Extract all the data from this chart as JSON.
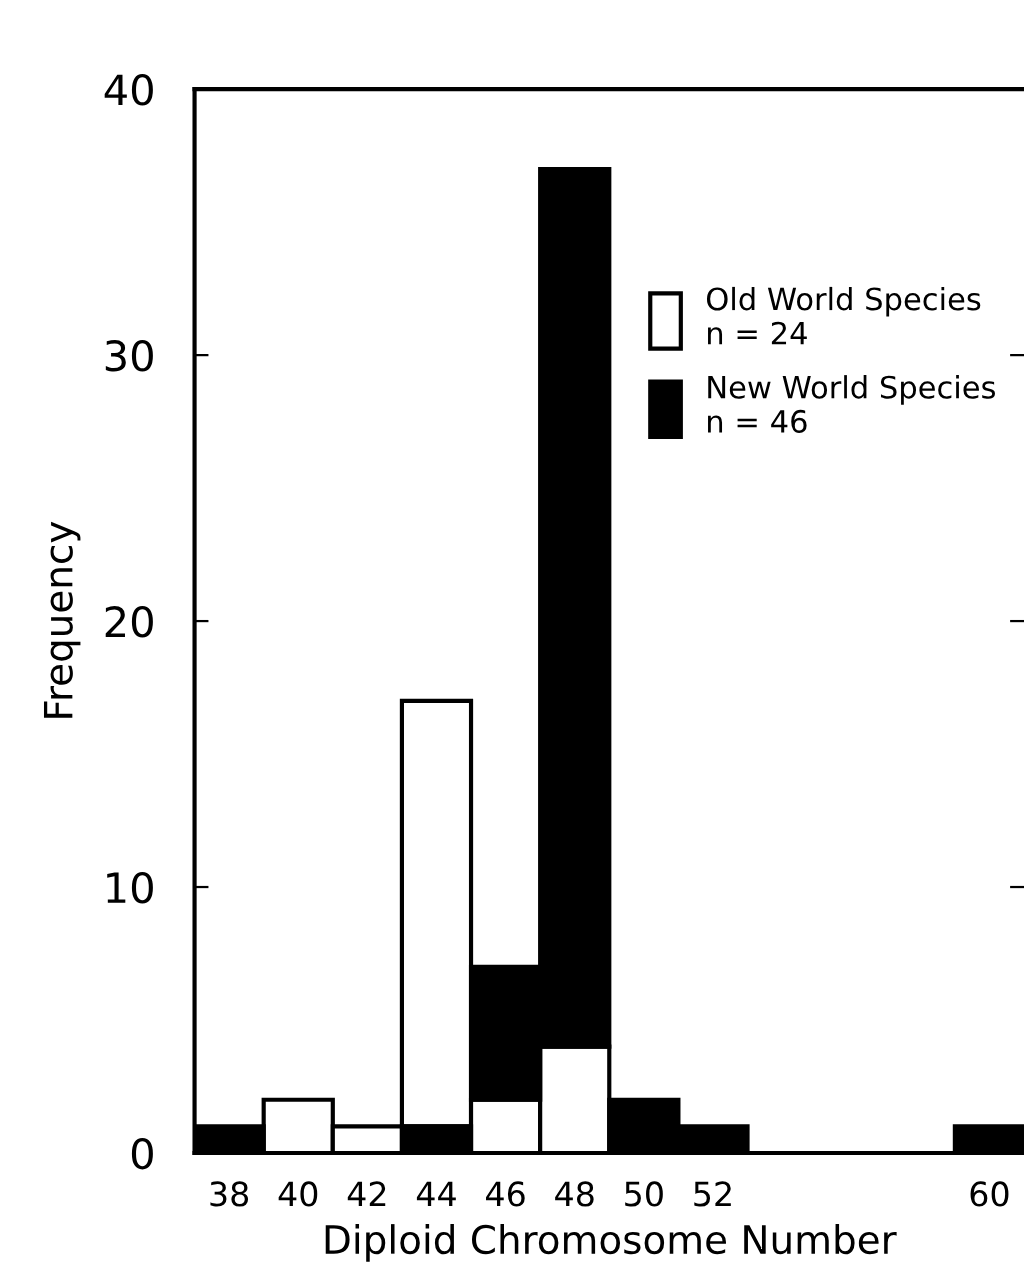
{
  "chart_data": {
    "type": "bar",
    "xlabel": "Diploid Chromosome Number",
    "ylabel": "Frequency",
    "x": [
      38,
      40,
      42,
      44,
      46,
      48,
      50,
      52,
      60
    ],
    "series": [
      {
        "name": "Old World Species\nn = 24",
        "color": "#ffffff",
        "values": [
          null,
          2,
          1,
          16,
          2,
          4,
          null,
          null,
          null
        ],
        "base": [
          null,
          0,
          0,
          1,
          0,
          0,
          null,
          null,
          null
        ]
      },
      {
        "name": "New World Species\nn = 46",
        "color": "#000000",
        "values": [
          1,
          null,
          null,
          1,
          5,
          33,
          2,
          1,
          1
        ],
        "base": [
          0,
          null,
          null,
          0,
          2,
          4,
          0,
          0,
          0
        ]
      }
    ],
    "xlim": [
      37,
      61
    ],
    "xticks": [
      38,
      40,
      42,
      44,
      46,
      48,
      50,
      52,
      60
    ],
    "ylim": [
      0,
      40
    ],
    "yticks": [
      0,
      10,
      20,
      30,
      40
    ],
    "grid": false,
    "legend": "top right"
  }
}
